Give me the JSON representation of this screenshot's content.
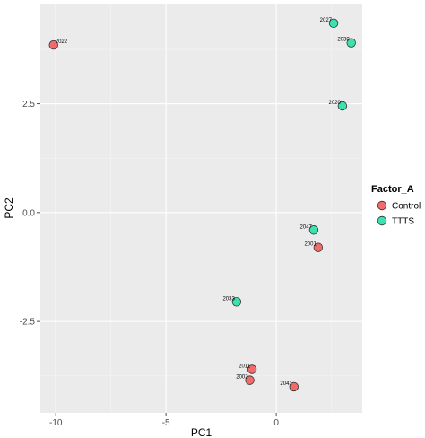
{
  "chart_data": {
    "type": "scatter",
    "title": "",
    "xlabel": "PC1",
    "ylabel": "PC2",
    "xlim": [
      -10.7,
      3.9
    ],
    "ylim": [
      -4.6,
      4.8
    ],
    "x_ticks": [
      -10,
      -5,
      0
    ],
    "x_tick_labels": [
      "-10",
      "-5",
      "0"
    ],
    "y_ticks": [
      -2.5,
      0.0,
      2.5
    ],
    "y_tick_labels": [
      "-2.5",
      "0.0",
      "2.5"
    ],
    "grid": true,
    "background": "#ebebeb",
    "legend": {
      "title": "Factor_A",
      "position": "right",
      "entries": [
        {
          "label": "Control",
          "color": "#f26b6b"
        },
        {
          "label": "TTTS",
          "color": "#3fe0b0"
        }
      ]
    },
    "series": [
      {
        "name": "Control",
        "color": "#f26b6b",
        "points": [
          {
            "id": "2022",
            "x": -10.1,
            "y": 3.85
          },
          {
            "id": "2001",
            "x": 1.9,
            "y": -0.8
          },
          {
            "id": "2011",
            "x": -1.1,
            "y": -3.6
          },
          {
            "id": "2002",
            "x": -1.2,
            "y": -3.85
          },
          {
            "id": "2041",
            "x": 0.8,
            "y": -4.0
          }
        ]
      },
      {
        "name": "TTTS",
        "color": "#3fe0b0",
        "points": [
          {
            "id": "2027",
            "x": 2.6,
            "y": 4.35
          },
          {
            "id": "2030",
            "x": 3.4,
            "y": 3.9
          },
          {
            "id": "2020",
            "x": 3.0,
            "y": 2.45
          },
          {
            "id": "2047",
            "x": 1.7,
            "y": -0.4
          },
          {
            "id": "2033",
            "x": -1.8,
            "y": -2.05
          }
        ]
      }
    ]
  }
}
